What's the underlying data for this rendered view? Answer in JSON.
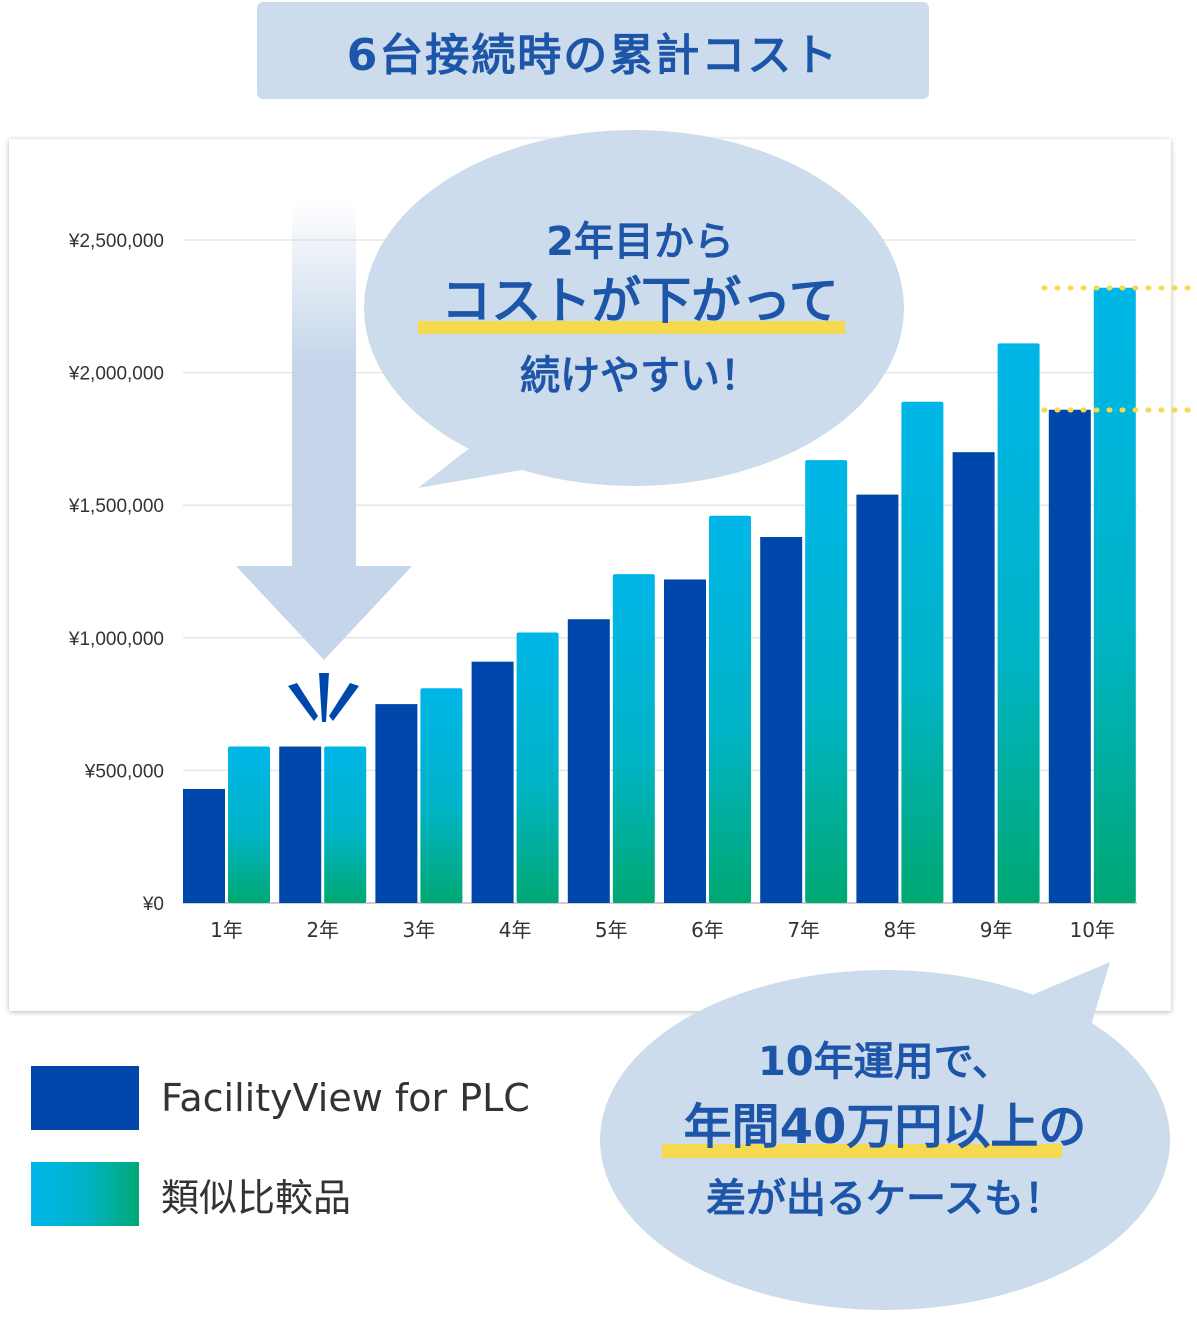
{
  "title": "6台接続時の累計コスト",
  "chart_data": {
    "type": "bar",
    "categories": [
      "1年",
      "2年",
      "3年",
      "4年",
      "5年",
      "6年",
      "7年",
      "8年",
      "9年",
      "10年"
    ],
    "y_tick_labels": [
      "¥0",
      "¥500,000",
      "¥1,000,000",
      "¥1,500,000",
      "¥2,000,000",
      "¥2,500,000"
    ],
    "y_ticks": [
      0,
      500000,
      1000000,
      1500000,
      2000000,
      2500000
    ],
    "ylim": [
      0,
      2500000
    ],
    "grid": true,
    "series": [
      {
        "name": "FacilityView for PLC",
        "color": "#0047ab",
        "values": [
          430000,
          590000,
          750000,
          910000,
          1070000,
          1220000,
          1380000,
          1540000,
          1700000,
          1860000
        ]
      },
      {
        "name": "類似比較品",
        "color_top": "#00b4e6",
        "color_bottom": "#00a873",
        "values": [
          590000,
          590000,
          810000,
          1020000,
          1240000,
          1460000,
          1670000,
          1890000,
          2110000,
          2320000
        ]
      }
    ]
  },
  "callout_top": {
    "line1": "2年目から",
    "line2": "コストが下がって",
    "line3": "続けやすい！"
  },
  "callout_bottom": {
    "line1": "10年運用で、",
    "line2": "年間40万円以上の",
    "line3": "差が出るケースも！"
  },
  "legend": [
    {
      "label": "FacilityView for PLC"
    },
    {
      "label": "類似比較品"
    }
  ],
  "colors": {
    "bubble": "#cddcec",
    "accent_text": "#1d56a8",
    "highlight": "#f5d94e",
    "arrow": "#c5d6ea",
    "grid": "#e6e6e6"
  }
}
